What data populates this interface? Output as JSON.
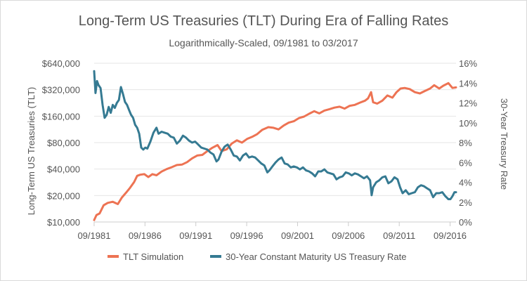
{
  "chart_data": {
    "type": "line",
    "title": "Long-Term US Treasuries (TLT) During Era of Falling Rates",
    "subtitle": "Logarithmically-Scaled, 09/1981 to 03/2017",
    "xlabel": "",
    "ylabel_left": "Long-Term US Treasuries (TLT)",
    "ylabel_right": "30-Year Treasury Rate",
    "x_ticks": [
      "09/1981",
      "09/1986",
      "09/1991",
      "09/1996",
      "09/2001",
      "09/2006",
      "09/2011",
      "09/2016"
    ],
    "x_range": [
      1981.67,
      2017.25
    ],
    "y_left_scale": "log",
    "y_left_ticks": [
      10000,
      20000,
      40000,
      80000,
      160000,
      320000,
      640000
    ],
    "y_left_tick_labels": [
      "$10,000",
      "$20,000",
      "$40,000",
      "$80,000",
      "$160,000",
      "$320,000",
      "$640,000"
    ],
    "y_left_range": [
      10000,
      640000
    ],
    "y_right_ticks": [
      0,
      2,
      4,
      6,
      8,
      10,
      12,
      14,
      16
    ],
    "y_right_tick_labels": [
      "0%",
      "2%",
      "4%",
      "6%",
      "8%",
      "10%",
      "12%",
      "14%",
      "16%"
    ],
    "y_right_range": [
      0,
      16
    ],
    "series": [
      {
        "name": "TLT Simulation",
        "axis": "left",
        "color": "#ed7353",
        "x": [
          1981.67,
          1981.9,
          1982.2,
          1982.6,
          1983.0,
          1983.5,
          1984.0,
          1984.4,
          1984.8,
          1985.2,
          1985.6,
          1985.9,
          1986.2,
          1986.6,
          1987.0,
          1987.4,
          1987.8,
          1988.3,
          1988.8,
          1989.3,
          1989.8,
          1990.3,
          1990.8,
          1991.3,
          1991.8,
          1992.3,
          1992.8,
          1993.3,
          1993.8,
          1994.2,
          1994.7,
          1995.2,
          1995.7,
          1996.2,
          1996.7,
          1997.2,
          1997.7,
          1998.2,
          1998.8,
          1999.3,
          1999.8,
          2000.3,
          2000.8,
          2001.3,
          2001.8,
          2002.3,
          2002.8,
          2003.3,
          2003.8,
          2004.3,
          2004.8,
          2005.3,
          2005.8,
          2006.3,
          2006.8,
          2007.3,
          2007.8,
          2008.3,
          2008.6,
          2008.9,
          2009.1,
          2009.5,
          2010.0,
          2010.5,
          2011.0,
          2011.4,
          2011.8,
          2012.2,
          2012.7,
          2013.2,
          2013.7,
          2014.2,
          2014.7,
          2015.1,
          2015.6,
          2016.0,
          2016.5,
          2016.9,
          2017.25
        ],
        "values": [
          10500,
          12000,
          12500,
          15500,
          16500,
          17000,
          16000,
          19000,
          21500,
          24500,
          28500,
          33500,
          34500,
          35000,
          32500,
          35000,
          34000,
          37500,
          40000,
          42000,
          44500,
          45000,
          48000,
          53000,
          57000,
          58000,
          64000,
          70000,
          75000,
          64000,
          67000,
          78000,
          85000,
          80000,
          88000,
          93000,
          100000,
          112000,
          120000,
          118000,
          113000,
          125000,
          135000,
          140000,
          152000,
          158000,
          170000,
          182000,
          172000,
          185000,
          192000,
          200000,
          205000,
          195000,
          210000,
          215000,
          228000,
          240000,
          255000,
          300000,
          230000,
          222000,
          240000,
          275000,
          260000,
          300000,
          330000,
          335000,
          325000,
          300000,
          290000,
          310000,
          330000,
          360000,
          330000,
          355000,
          380000,
          335000,
          340000
        ]
      },
      {
        "name": "30-Year Constant Maturity US Treasury Rate",
        "axis": "right",
        "color": "#357a92",
        "x": [
          1981.67,
          1981.8,
          1981.95,
          1982.1,
          1982.3,
          1982.5,
          1982.7,
          1982.9,
          1983.1,
          1983.3,
          1983.5,
          1983.7,
          1983.9,
          1984.1,
          1984.3,
          1984.5,
          1984.7,
          1984.9,
          1985.1,
          1985.3,
          1985.5,
          1985.7,
          1985.9,
          1986.1,
          1986.3,
          1986.5,
          1986.7,
          1986.9,
          1987.2,
          1987.5,
          1987.8,
          1988.0,
          1988.3,
          1988.6,
          1988.9,
          1989.2,
          1989.5,
          1989.8,
          1990.1,
          1990.4,
          1990.7,
          1991.0,
          1991.3,
          1991.6,
          1991.9,
          1992.2,
          1992.5,
          1992.8,
          1993.1,
          1993.4,
          1993.7,
          1993.9,
          1994.2,
          1994.5,
          1994.8,
          1995.1,
          1995.4,
          1995.7,
          1996.0,
          1996.3,
          1996.6,
          1996.9,
          1997.2,
          1997.5,
          1997.8,
          1998.1,
          1998.4,
          1998.7,
          1998.9,
          1999.2,
          1999.5,
          1999.8,
          2000.1,
          2000.4,
          2000.7,
          2001.0,
          2001.3,
          2001.6,
          2001.9,
          2002.2,
          2002.5,
          2002.8,
          2003.1,
          2003.4,
          2003.7,
          2004.0,
          2004.3,
          2004.6,
          2004.9,
          2005.2,
          2005.5,
          2005.8,
          2006.1,
          2006.4,
          2006.7,
          2007.0,
          2007.3,
          2007.6,
          2007.9,
          2008.2,
          2008.5,
          2008.8,
          2008.95,
          2009.1,
          2009.4,
          2009.7,
          2010.0,
          2010.3,
          2010.6,
          2010.9,
          2011.2,
          2011.5,
          2011.75,
          2012.0,
          2012.3,
          2012.6,
          2012.9,
          2013.2,
          2013.5,
          2013.8,
          2014.1,
          2014.4,
          2014.7,
          2015.0,
          2015.3,
          2015.6,
          2015.9,
          2016.2,
          2016.5,
          2016.7,
          2016.9,
          2017.1,
          2017.25
        ],
        "values": [
          15.2,
          13.0,
          14.2,
          13.8,
          13.5,
          11.8,
          10.5,
          10.8,
          11.6,
          11.0,
          11.8,
          11.5,
          12.0,
          12.3,
          13.6,
          12.9,
          12.1,
          11.8,
          11.3,
          10.8,
          10.5,
          9.8,
          9.5,
          8.9,
          7.5,
          7.3,
          7.5,
          7.4,
          8.1,
          9.0,
          9.5,
          8.9,
          9.1,
          9.0,
          8.9,
          8.6,
          8.5,
          7.9,
          8.2,
          8.7,
          8.5,
          8.2,
          8.0,
          8.1,
          7.8,
          7.5,
          7.4,
          7.3,
          7.0,
          6.8,
          6.1,
          6.3,
          7.1,
          7.6,
          7.8,
          7.3,
          6.7,
          6.6,
          6.2,
          6.7,
          6.9,
          6.5,
          6.6,
          6.5,
          6.2,
          5.9,
          5.7,
          5.0,
          5.2,
          5.6,
          6.0,
          6.3,
          6.5,
          5.9,
          5.8,
          5.5,
          5.6,
          5.5,
          5.3,
          5.5,
          5.2,
          5.1,
          4.9,
          4.6,
          5.1,
          5.1,
          5.3,
          5.0,
          4.9,
          4.8,
          4.3,
          4.5,
          4.6,
          5.0,
          4.9,
          4.7,
          4.9,
          4.8,
          4.6,
          4.4,
          4.6,
          4.2,
          2.7,
          3.5,
          4.0,
          4.2,
          4.5,
          4.6,
          3.9,
          4.1,
          4.5,
          4.3,
          3.5,
          2.9,
          3.2,
          2.8,
          2.9,
          3.0,
          3.5,
          3.7,
          3.6,
          3.4,
          3.2,
          2.5,
          2.9,
          2.9,
          3.0,
          2.6,
          2.3,
          2.3,
          2.6,
          3.0,
          3.0
        ]
      }
    ]
  }
}
